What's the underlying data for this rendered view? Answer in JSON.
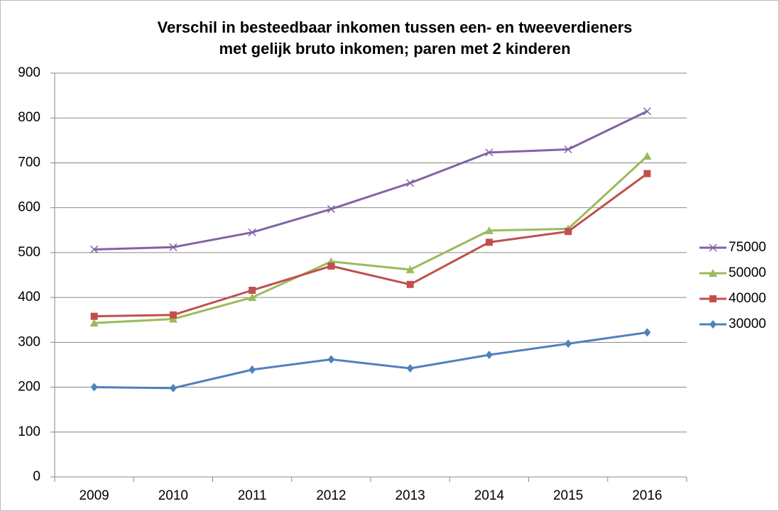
{
  "chart_data": {
    "type": "line",
    "title": [
      "Verschil in besteedbaar inkomen tussen een- en tweeverdieners",
      "met gelijk bruto inkomen; paren met 2 kinderen"
    ],
    "categories": [
      "2009",
      "2010",
      "2011",
      "2012",
      "2013",
      "2014",
      "2015",
      "2016"
    ],
    "series": [
      {
        "name": "75000",
        "color": "#8064a2",
        "marker": "x",
        "values": [
          507,
          512,
          545,
          597,
          655,
          723,
          730,
          815
        ]
      },
      {
        "name": "50000",
        "color": "#9bbb59",
        "marker": "triangle",
        "values": [
          343,
          352,
          400,
          480,
          462,
          549,
          553,
          715
        ]
      },
      {
        "name": "40000",
        "color": "#c0504d",
        "marker": "square",
        "values": [
          358,
          361,
          416,
          470,
          429,
          523,
          547,
          676
        ]
      },
      {
        "name": "30000",
        "color": "#4f81bd",
        "marker": "diamond",
        "values": [
          200,
          198,
          239,
          262,
          242,
          272,
          297,
          322
        ]
      }
    ],
    "ylim": [
      0,
      900
    ],
    "yticks": [
      0,
      100,
      200,
      300,
      400,
      500,
      600,
      700,
      800,
      900
    ],
    "grid": true,
    "legend": "right"
  }
}
